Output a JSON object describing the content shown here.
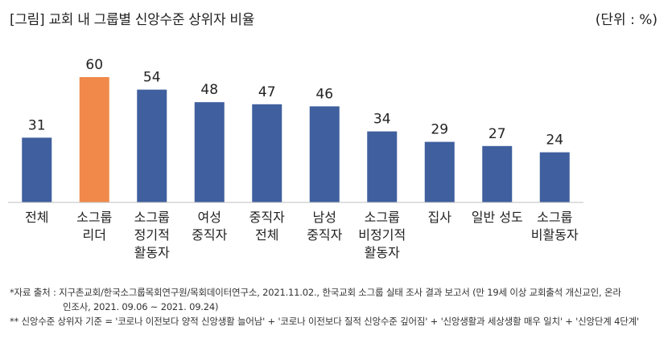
{
  "header": {
    "title": "[그림] 교회 내 그룹별 신앙수준 상위자 비율",
    "unit": "(단위 : %)"
  },
  "chart_data": {
    "type": "bar",
    "categories": [
      [
        "전체"
      ],
      [
        "소그룹",
        "리더"
      ],
      [
        "소그룹",
        "정기적",
        "활동자"
      ],
      [
        "여성",
        "중직자"
      ],
      [
        "중직자",
        "전체"
      ],
      [
        "남성",
        "중직자"
      ],
      [
        "소그룹",
        "비정기적",
        "활동자"
      ],
      [
        "집사"
      ],
      [
        "일반 성도"
      ],
      [
        "소그룹",
        "비활동자"
      ]
    ],
    "values": [
      31,
      60,
      54,
      48,
      47,
      46,
      34,
      29,
      27,
      24
    ],
    "ylim": [
      0,
      70
    ],
    "highlight_index": 1,
    "colors": {
      "default": "#3f5f9e",
      "highlight": "#f0894a",
      "axis": "#bfbfbf"
    },
    "grid": false,
    "legend": "none"
  },
  "footnotes": {
    "line1": "*자료 출처 : 지구촌교회/한국소그룹목회연구원/목회데이터연구소, 2021.11.02., 한국교회 소그룹 실태 조사 결과 보고서 (만 19세 이상 교회출석 개신교인, 온라",
    "line2": "인조사, 2021. 09.06 ~ 2021. 09.24)",
    "line3": "** 신앙수준 상위자 기준 = '코로나 이전보다 양적 신앙생활 늘어남' + '코로나 이전보다 질적 신앙수준 깊어짐' + '신앙생활과 세상생활 매우 일치' + '신앙단계 4단계'"
  }
}
